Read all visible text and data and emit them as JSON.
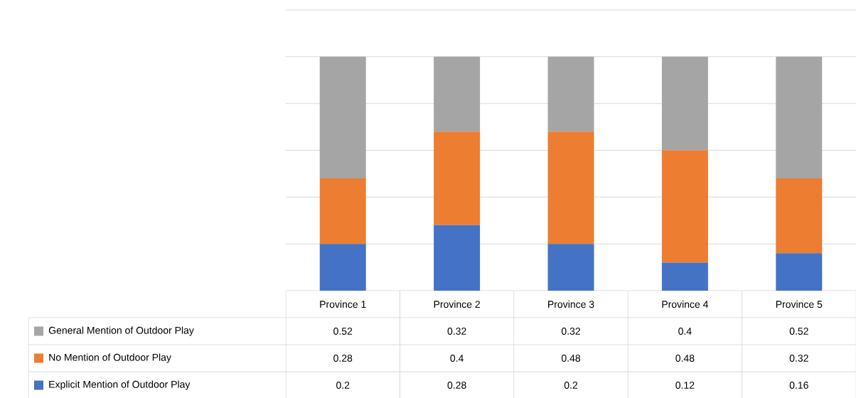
{
  "chart_data": {
    "type": "bar",
    "stacked": true,
    "categories": [
      "Province 1",
      "Province 2",
      "Province 3",
      "Province 4",
      "Province 5"
    ],
    "series": [
      {
        "name": "Explicit Mention of Outdoor Play",
        "color": "#4472c4",
        "values": [
          0.2,
          0.28,
          0.2,
          0.12,
          0.16
        ]
      },
      {
        "name": "No Mention of Outdoor Play",
        "color": "#ed7d31",
        "values": [
          0.28,
          0.4,
          0.48,
          0.48,
          0.32
        ]
      },
      {
        "name": "General Mention of Outdoor Play",
        "color": "#a5a5a5",
        "values": [
          0.52,
          0.32,
          0.32,
          0.4,
          0.52
        ]
      }
    ],
    "ylim": [
      0,
      1.2
    ],
    "yticks": [
      {
        "value": 0,
        "label": null
      },
      {
        "value": 0.2,
        "label": null
      },
      {
        "value": 0.4,
        "label": null
      },
      {
        "value": 0.6,
        "label": null
      },
      {
        "value": 0.8,
        "label": null
      },
      {
        "value": 1.0,
        "label": null
      },
      {
        "value": 1.2,
        "label": null
      }
    ],
    "grid": "y",
    "legend": "bottom",
    "data_labels": true,
    "tick_labels": "x"
  }
}
